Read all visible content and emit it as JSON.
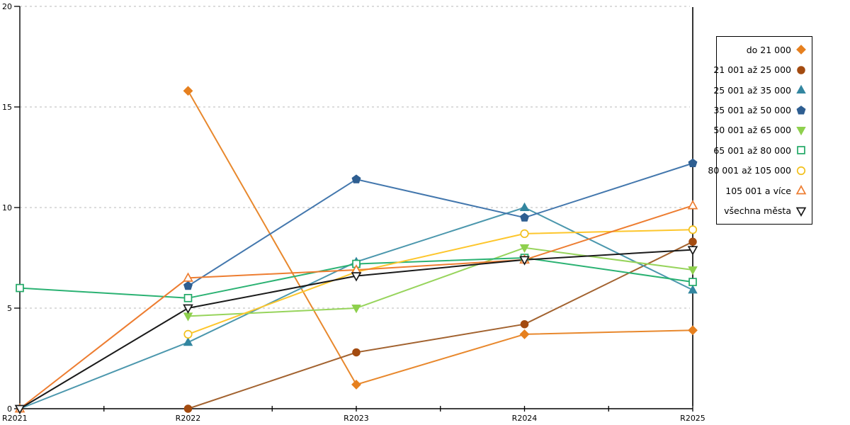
{
  "chart_data": {
    "type": "line",
    "title": "",
    "xlabel": "",
    "ylabel": "",
    "categories": [
      "R2021",
      "R2022",
      "R2023",
      "R2024",
      "R2025"
    ],
    "y_ticks": [
      0,
      5,
      10,
      15,
      20
    ],
    "ylim": [
      0,
      20
    ],
    "grid": "horizontal dashed gridlines at 5,10,15,20",
    "legend_position": "right",
    "colors": {
      "gridline": "#c6c6c6",
      "axis": "#000000",
      "background": "#ffffff"
    },
    "series": [
      {
        "name": "do 21 000",
        "marker": "diamond",
        "fill": "solid",
        "color": "#e6801f",
        "line_color": "#e8882d",
        "values": [
          null,
          15.8,
          1.2,
          3.7,
          3.9
        ]
      },
      {
        "name": "21 001 až 25 000",
        "marker": "circle",
        "fill": "solid",
        "color": "#a34b10",
        "line_color": "#a2622f",
        "values": [
          null,
          0,
          2.8,
          4.2,
          8.3
        ]
      },
      {
        "name": "25 001 až 35 000",
        "marker": "triangle-up",
        "fill": "solid",
        "color": "#3386a0",
        "line_color": "#4b97ad",
        "values": [
          0,
          3.3,
          7.3,
          10,
          5.9
        ]
      },
      {
        "name": "35 001 až 50 000",
        "marker": "pentagon",
        "fill": "solid",
        "color": "#2e5e91",
        "line_color": "#4377ad",
        "values": [
          null,
          6.1,
          11.4,
          9.5,
          12.2
        ]
      },
      {
        "name": "50 001 až 65 000",
        "marker": "triangle-down",
        "fill": "solid",
        "color": "#8ed04d",
        "line_color": "#97d45c",
        "values": [
          null,
          4.6,
          5,
          8,
          6.9
        ]
      },
      {
        "name": "65 001 až 80 000",
        "marker": "square",
        "fill": "open",
        "color": "#21a866",
        "line_color": "#2bb273",
        "values": [
          6,
          5.5,
          7.2,
          7.5,
          6.3
        ]
      },
      {
        "name": "80 001 až 105 000",
        "marker": "circle",
        "fill": "open",
        "color": "#f2c01c",
        "line_color": "#fdc62c",
        "values": [
          null,
          3.7,
          6.8,
          8.7,
          8.9
        ]
      },
      {
        "name": "105 001 a více",
        "marker": "triangle-up",
        "fill": "open",
        "color": "#ed7d31",
        "line_color": "#ed7d31",
        "values": [
          0,
          6.5,
          6.9,
          7.4,
          10.1
        ]
      },
      {
        "name": "všechna města",
        "marker": "triangle-down",
        "fill": "open",
        "color": "#1a1a1a",
        "line_color": "#1a1a1a",
        "values": [
          0,
          5,
          6.6,
          7.4,
          7.9
        ]
      }
    ]
  }
}
